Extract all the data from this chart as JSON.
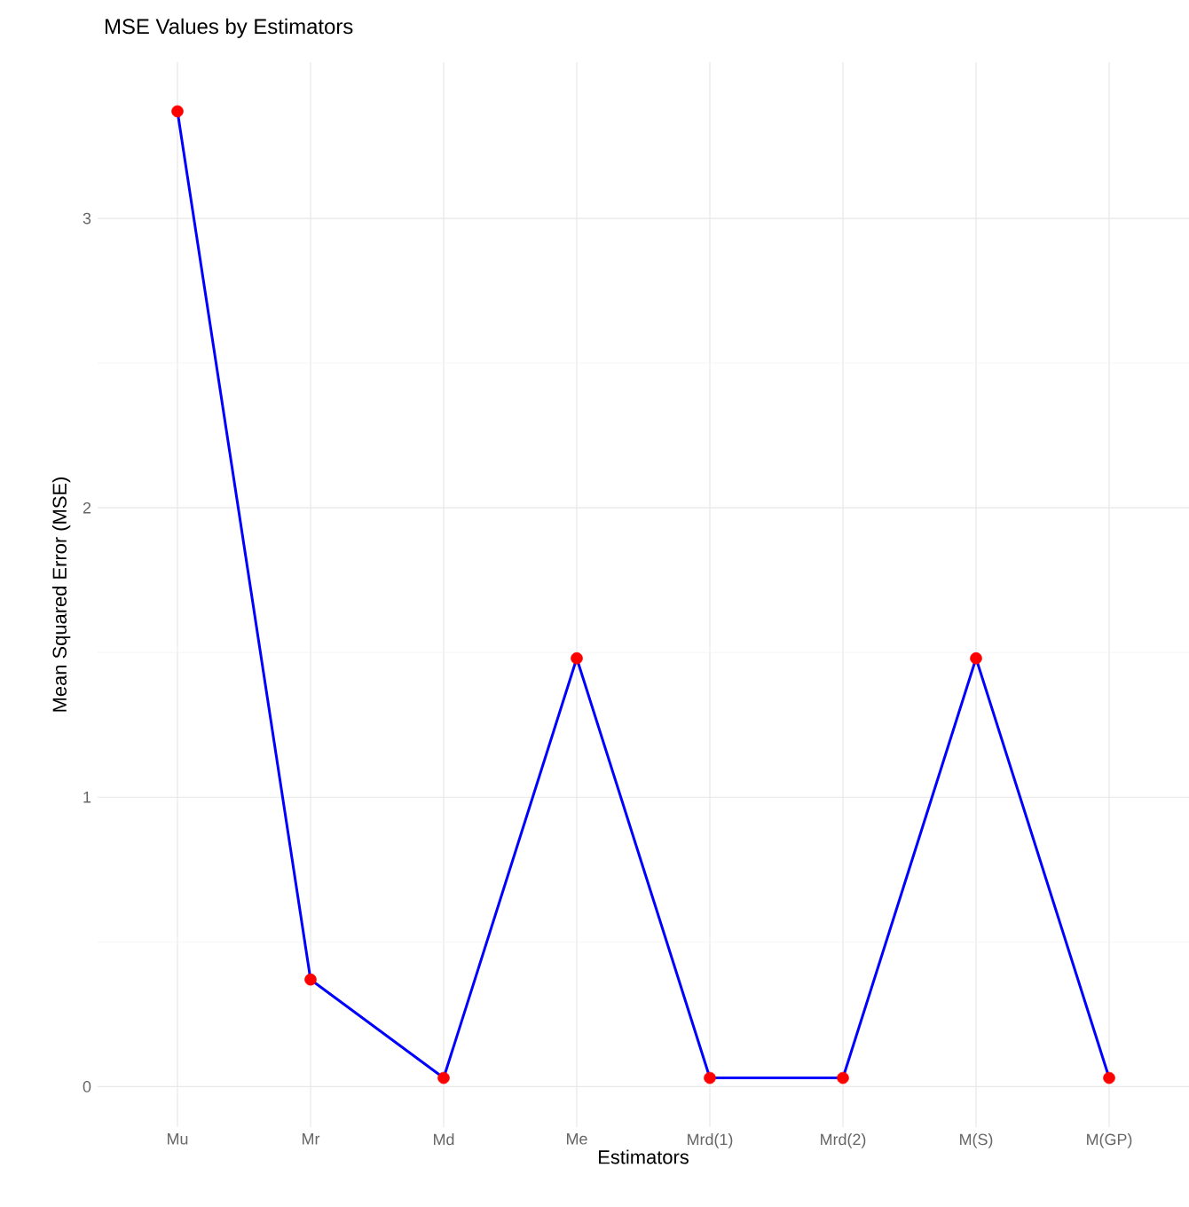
{
  "chart_data": {
    "type": "line",
    "title": "MSE Values by Estimators",
    "xlabel": "Estimators",
    "ylabel": "Mean Squared Error (MSE)",
    "categories": [
      "Mu",
      "Mr",
      "Md",
      "Me",
      "Mrd(1)",
      "Mrd(2)",
      "M(S)",
      "M(GP)"
    ],
    "series": [
      {
        "color": "#0000ff",
        "colors": [
          "#ff0000",
          "#ff0000",
          "#ff0000",
          "#ff0000",
          "#ff0000",
          "#ff0000",
          "#ff0000",
          "#ff0000"
        ],
        "values": [
          3.37,
          0.37,
          0.03,
          1.48,
          0.03,
          0.03,
          1.48,
          0.03
        ]
      }
    ],
    "ylim": [
      -0.14,
      3.54
    ],
    "yticks": [
      0,
      1,
      2,
      3
    ],
    "grid": true,
    "marker": "circle"
  }
}
